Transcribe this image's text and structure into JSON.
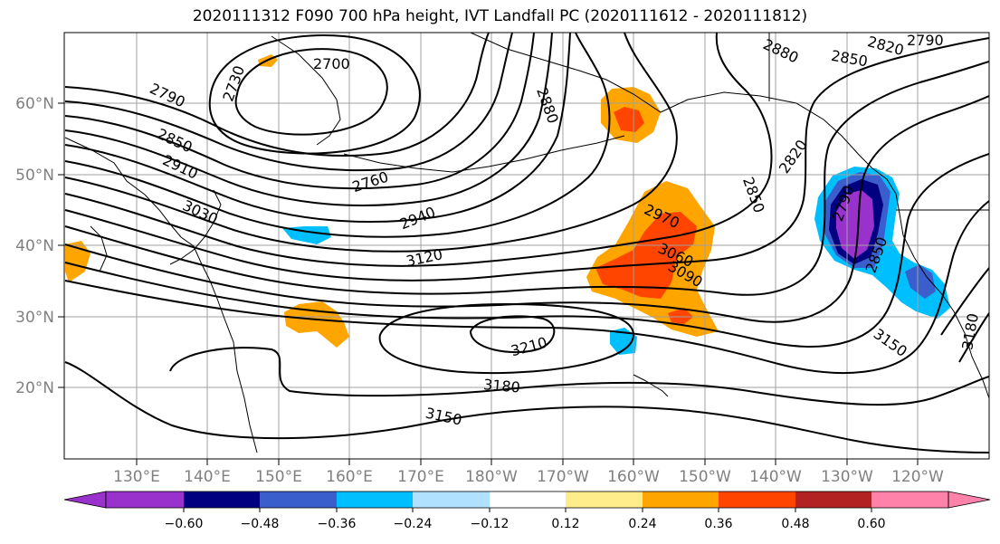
{
  "title": "2020111312 F090 700 hPa height, IVT Landfall PC (2020111612 - 2020111812)",
  "map": {
    "lat_labels": [
      "60°N",
      "50°N",
      "40°N",
      "30°N",
      "20°N"
    ],
    "lon_labels": [
      "130°E",
      "140°E",
      "150°E",
      "160°E",
      "170°E",
      "180°W",
      "170°W",
      "160°W",
      "150°W",
      "140°W",
      "130°W",
      "120°W"
    ],
    "contour_labels": [
      "2700",
      "2730",
      "2790",
      "2850",
      "2910",
      "3030",
      "2760",
      "2940",
      "3120",
      "2880",
      "2820",
      "2850",
      "2790",
      "2880",
      "2820",
      "2850",
      "2970",
      "3060",
      "3090",
      "3210",
      "3180",
      "3150",
      "3150",
      "3180",
      "2790",
      "2850"
    ]
  },
  "colorbar": {
    "ticks": [
      "−0.60",
      "−0.48",
      "−0.36",
      "−0.24",
      "−0.12",
      "0.12",
      "0.24",
      "0.36",
      "0.48",
      "0.60"
    ],
    "colors": [
      "#9932cc",
      "#000080",
      "#3a5fcd",
      "#00bfff",
      "#b0e2ff",
      "#ffffff",
      "#ffec8b",
      "#ffa500",
      "#ff4500",
      "#b22222",
      "#ff82ab"
    ]
  }
}
